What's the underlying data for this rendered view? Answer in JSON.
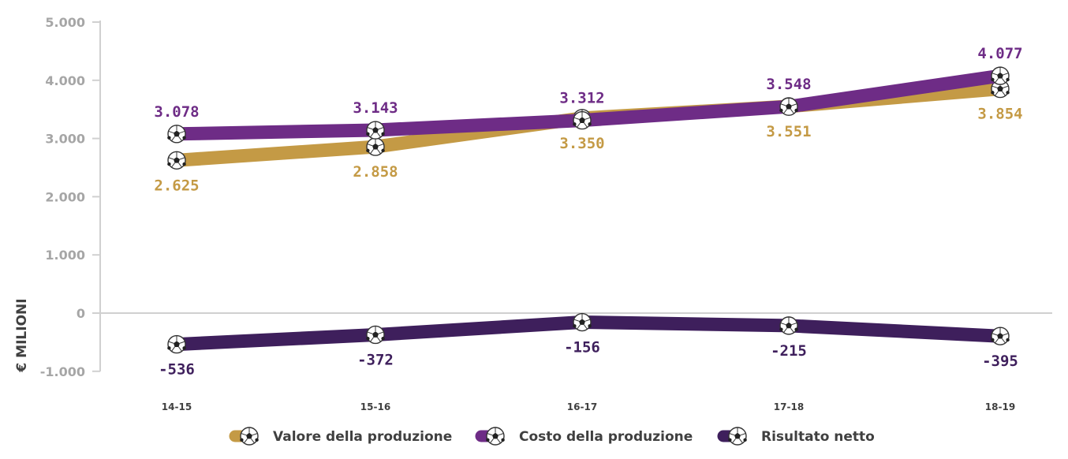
{
  "chart_data": {
    "type": "line",
    "categories": [
      "14-15",
      "15-16",
      "16-17",
      "17-18",
      "18-19"
    ],
    "series": [
      {
        "name": "Valore della produzione",
        "values": [
          2625,
          2858,
          3350,
          3551,
          3854
        ],
        "labels": [
          "2.625",
          "2.858",
          "3.350",
          "3.551",
          "3.854"
        ],
        "color": "#C49A45",
        "marker": "soccer-ball"
      },
      {
        "name": "Costo della produzione",
        "values": [
          3078,
          3143,
          3312,
          3548,
          4077
        ],
        "labels": [
          "3.078",
          "3.143",
          "3.312",
          "3.548",
          "4.077"
        ],
        "color": "#6E2C86",
        "marker": "soccer-ball"
      },
      {
        "name": "Risultato netto",
        "values": [
          -536,
          -372,
          -156,
          -215,
          -395
        ],
        "labels": [
          "-536",
          "-372",
          "-156",
          "-215",
          "-395"
        ],
        "color": "#3E1F5C",
        "marker": "soccer-ball"
      }
    ],
    "yticks": [
      -1000,
      0,
      1000,
      2000,
      3000,
      4000,
      5000
    ],
    "ytick_labels": [
      "-1.000",
      "0",
      "1.000",
      "2.000",
      "3.000",
      "4.000",
      "5.000"
    ],
    "ylim": [
      -1000,
      5000
    ],
    "ylabel": "€ MILIONI",
    "xlabel": "",
    "grid": false,
    "legend": "bottom-center"
  }
}
